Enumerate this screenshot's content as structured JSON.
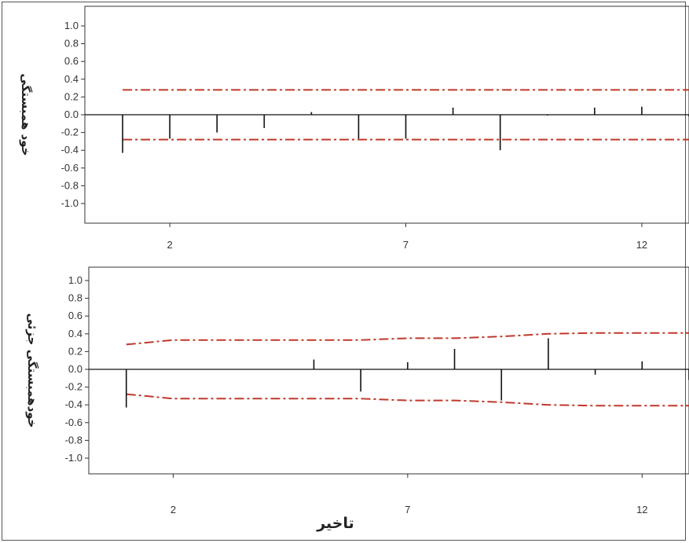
{
  "chart_data": [
    {
      "type": "bar",
      "title": "",
      "ylabel": "خود همبستگی",
      "xlabel": "",
      "ylim": [
        -1.0,
        1.0
      ],
      "xlim": [
        0.2,
        13.0
      ],
      "yticks": [
        "1.0",
        "0.8",
        "0.6",
        "0.4",
        "0.2",
        "0.0",
        "-0.2",
        "-0.4",
        "-0.6",
        "-0.8",
        "-1.0"
      ],
      "xticks": [
        2,
        7,
        12
      ],
      "x": [
        1,
        2,
        3,
        4,
        5,
        6,
        7,
        8,
        9,
        10,
        11,
        12,
        13
      ],
      "values": [
        -0.43,
        -0.27,
        -0.2,
        -0.15,
        0.03,
        -0.27,
        -0.27,
        0.08,
        -0.4,
        -0.01,
        0.08,
        0.09,
        -0.02
      ],
      "confidence_upper": [
        0.28,
        0.28,
        0.28,
        0.28,
        0.28,
        0.28,
        0.28,
        0.28,
        0.28,
        0.28,
        0.28,
        0.28,
        0.28
      ],
      "confidence_lower": [
        -0.28,
        -0.28,
        -0.28,
        -0.28,
        -0.28,
        -0.28,
        -0.28,
        -0.28,
        -0.28,
        -0.28,
        -0.28,
        -0.28,
        -0.28
      ],
      "colors": {
        "bars": "#111111",
        "confidence": "#c0392b",
        "zero_line": "#111111"
      }
    },
    {
      "type": "bar",
      "title": "",
      "ylabel": "خودهمبستگی جزئی",
      "xlabel": "تاخیر",
      "ylim": [
        -1.0,
        1.0
      ],
      "xlim": [
        0.2,
        13.0
      ],
      "yticks": [
        "1.0",
        "0.8",
        "0.6",
        "0.4",
        "0.2",
        "0.0",
        "-0.2",
        "-0.4",
        "-0.6",
        "-0.8",
        "-1.0"
      ],
      "xticks": [
        2,
        7,
        12
      ],
      "x": [
        1,
        2,
        3,
        4,
        5,
        6,
        7,
        8,
        9,
        10,
        11,
        12,
        13
      ],
      "values": [
        -0.43,
        0.0,
        0.0,
        0.0,
        0.11,
        -0.25,
        0.08,
        0.23,
        -0.35,
        0.35,
        -0.06,
        0.09,
        -0.12
      ],
      "confidence_upper": [
        0.28,
        0.33,
        0.33,
        0.33,
        0.33,
        0.33,
        0.35,
        0.35,
        0.37,
        0.4,
        0.41,
        0.41,
        0.41
      ],
      "confidence_lower": [
        -0.28,
        -0.33,
        -0.33,
        -0.33,
        -0.33,
        -0.33,
        -0.35,
        -0.35,
        -0.37,
        -0.4,
        -0.41,
        -0.41,
        -0.41
      ],
      "colors": {
        "bars": "#111111",
        "confidence": "#c0392b",
        "zero_line": "#111111"
      }
    }
  ]
}
